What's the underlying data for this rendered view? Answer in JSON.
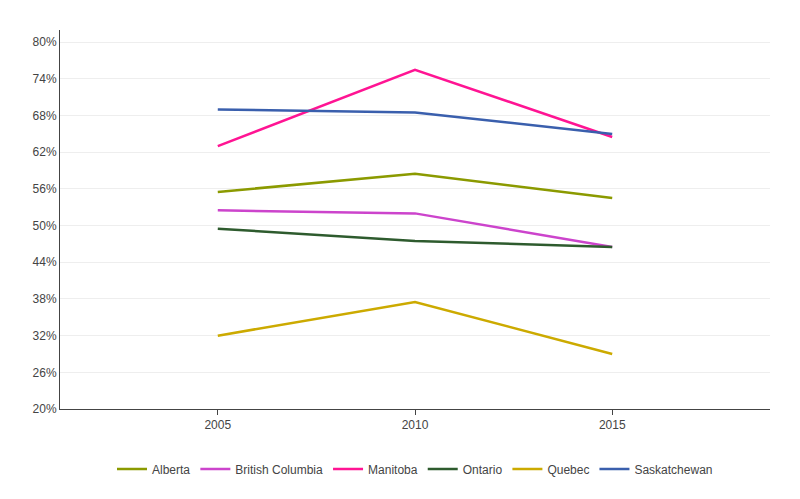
{
  "chart_data": {
    "type": "line",
    "x": [
      2005,
      2010,
      2015
    ],
    "series": [
      {
        "name": "Alberta",
        "color": "#8B9A00",
        "values": [
          55.5,
          58.5,
          54.5
        ]
      },
      {
        "name": "British Columbia",
        "color": "#CC44CC",
        "values": [
          52.5,
          52.0,
          46.5
        ]
      },
      {
        "name": "Manitoba",
        "color": "#FF1493",
        "values": [
          63.0,
          75.5,
          64.5
        ]
      },
      {
        "name": "Ontario",
        "color": "#2E5B2E",
        "values": [
          49.5,
          47.5,
          46.5
        ]
      },
      {
        "name": "Quebec",
        "color": "#CCAA00",
        "values": [
          32.0,
          37.5,
          29.0
        ]
      },
      {
        "name": "Saskatchewan",
        "color": "#3A5FAD",
        "values": [
          69.0,
          68.5,
          65.0
        ]
      }
    ],
    "xlim": [
      2001,
      2019
    ],
    "xticks": [
      2005,
      2010,
      2015
    ],
    "ylim": [
      20,
      82
    ],
    "yticks": [
      {
        "value": 20,
        "label": "20%"
      },
      {
        "value": 26,
        "label": "26%"
      },
      {
        "value": 32,
        "label": "32%"
      },
      {
        "value": 38,
        "label": "38%"
      },
      {
        "value": 44,
        "label": "44%"
      },
      {
        "value": 50,
        "label": "50%"
      },
      {
        "value": 56,
        "label": "56%"
      },
      {
        "value": 62,
        "label": "62%"
      },
      {
        "value": 68,
        "label": "68%"
      },
      {
        "value": 74,
        "label": "74%"
      },
      {
        "value": 80,
        "label": "80%"
      }
    ],
    "grid": true,
    "legend": "bottom"
  }
}
